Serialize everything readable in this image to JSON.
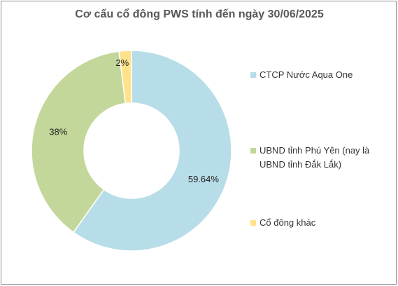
{
  "chart_data": {
    "type": "pie",
    "variant": "donut",
    "title": "Cơ cấu cổ đông PWS tính đến ngày 30/06/2025",
    "slices": [
      {
        "name": "CTCP Nước  Aqua One",
        "value": 59.64,
        "label": "59.64%",
        "color": "#b7dde8"
      },
      {
        "name": "UBND tỉnh Phú Yên (nay là UBND tỉnh Đắk Lắk)",
        "value": 38,
        "label": "38%",
        "color": "#c4d79b"
      },
      {
        "name": "Cổ đông khác",
        "value": 2,
        "label": "2%",
        "color": "#ffe28a"
      }
    ],
    "legend_position": "right"
  }
}
